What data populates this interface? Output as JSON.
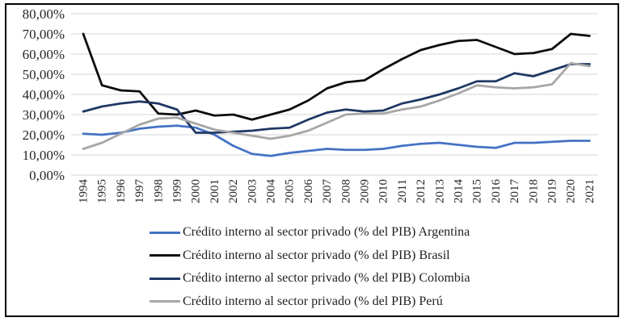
{
  "chart_frame": {
    "border_color": "#000000",
    "background_color": "#FFFFFF"
  },
  "chart_data": {
    "type": "line",
    "title": "",
    "xlabel": "",
    "ylabel": "",
    "x_categories": [
      "1994",
      "1995",
      "1996",
      "1997",
      "1998",
      "1999",
      "2000",
      "2001",
      "2002",
      "2003",
      "2004",
      "2005",
      "2006",
      "2007",
      "2008",
      "2009",
      "2010",
      "2011",
      "2012",
      "2013",
      "2014",
      "2015",
      "2016",
      "2017",
      "2018",
      "2019",
      "2020",
      "2021"
    ],
    "x_label_rotation_deg": -90,
    "y_axis": {
      "min": 0,
      "max": 80,
      "step": 10,
      "unit": "%",
      "tick_labels_top_to_bottom": [
        "80,00%",
        "70,00%",
        "60,00%",
        "50,00%",
        "40,00%",
        "30,00%",
        "20,00%",
        "10,00%",
        "0,00%"
      ]
    },
    "grid": {
      "show": true,
      "color": "#D6D6D6"
    },
    "text_color": "#262626",
    "legend": {
      "position": "bottom",
      "marker": "line"
    },
    "series": [
      {
        "name": "argentina",
        "label": "Crédito interno al sector privado (% del PIB) Argentina",
        "color": "#4472C4",
        "values": [
          20.5,
          20,
          21,
          23,
          24,
          24.5,
          23.5,
          20,
          14.5,
          10.5,
          9.5,
          11,
          12,
          13,
          12.5,
          12.5,
          13,
          14.5,
          15.5,
          16,
          15,
          14,
          13.5,
          16,
          16,
          16.5,
          17,
          17
        ]
      },
      {
        "name": "brasil",
        "label": "Crédito interno al sector privado (% del PIB) Brasil",
        "color": "#0D0D0D",
        "values": [
          70,
          44.5,
          42,
          41.5,
          30.5,
          30,
          32,
          29.5,
          30,
          27.5,
          30,
          32.5,
          37,
          43,
          46,
          47,
          52.5,
          57.5,
          62,
          64.5,
          66.5,
          67,
          63.5,
          60,
          60.5,
          62.5,
          70,
          69
        ]
      },
      {
        "name": "colombia",
        "label": "Crédito interno al sector privado (% del PIB) Colombia",
        "color": "#1F3864",
        "values": [
          31.5,
          34,
          35.5,
          36.5,
          35.5,
          32.5,
          21,
          21,
          21.5,
          22,
          23,
          23.5,
          27.5,
          31,
          32.5,
          31.5,
          32,
          35.5,
          37.5,
          40,
          43,
          46.5,
          46.5,
          50.5,
          49,
          52,
          55,
          55
        ]
      },
      {
        "name": "peru",
        "label": "Crédito interno al sector privado (% del PIB) Perú",
        "color": "#A6A6A6",
        "values": [
          13,
          16,
          20.5,
          25,
          28,
          28.5,
          25.5,
          22.5,
          21,
          19.5,
          18,
          19.5,
          22,
          26,
          30,
          30.5,
          30.5,
          32.5,
          34,
          37,
          40.5,
          44.5,
          43.5,
          43,
          43.5,
          45,
          55.5,
          54
        ]
      }
    ]
  }
}
